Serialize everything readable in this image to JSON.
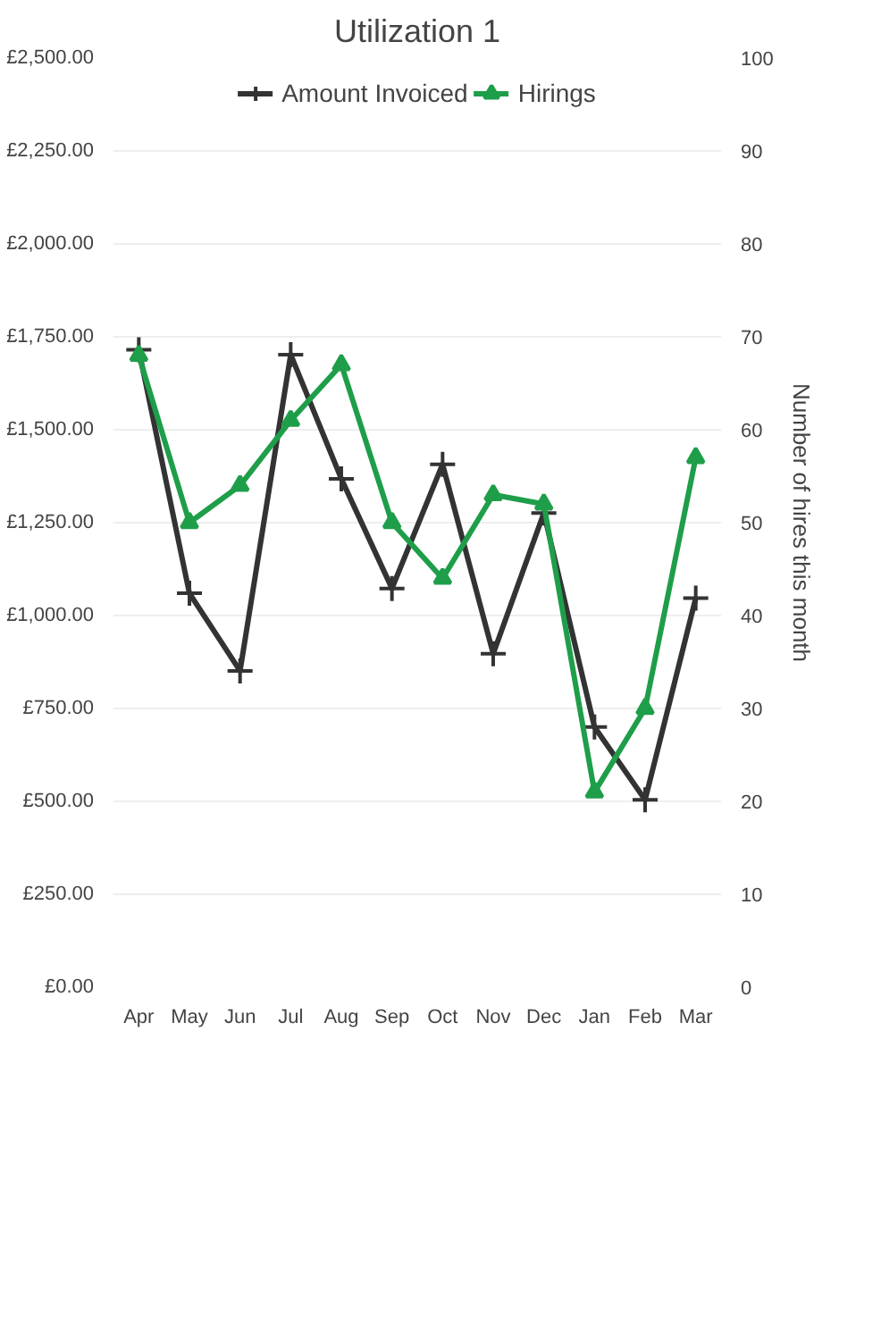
{
  "chart_data": {
    "type": "line",
    "title": "Utilization 1",
    "y2label": "Number of hires this month",
    "categories": [
      "Apr",
      "May",
      "Jun",
      "Jul",
      "Aug",
      "Sep",
      "Oct",
      "Nov",
      "Dec",
      "Jan",
      "Feb",
      "Mar"
    ],
    "series": [
      {
        "name": "Amount Invoiced",
        "color": "#333333",
        "marker": "cross",
        "values": [
          1715,
          1060,
          851,
          1702,
          1368,
          1073,
          1407,
          897,
          1276,
          700,
          504,
          1047
        ]
      },
      {
        "name": "Hirings",
        "color": "#1f9e4a",
        "marker": "triangle",
        "axis": "y2",
        "values": [
          68,
          50,
          54,
          61,
          67,
          50,
          44,
          53,
          52,
          21,
          30,
          57
        ]
      }
    ],
    "ylim": [
      0,
      2500
    ],
    "yticks": [
      {
        "value": 0,
        "label": "£0.00"
      },
      {
        "value": 250,
        "label": "£250.00"
      },
      {
        "value": 500,
        "label": "£500.00"
      },
      {
        "value": 750,
        "label": "£750.00"
      },
      {
        "value": 1000,
        "label": "£1,000.00"
      },
      {
        "value": 1250,
        "label": "£1,250.00"
      },
      {
        "value": 1500,
        "label": "£1,500.00"
      },
      {
        "value": 1750,
        "label": "£1,750.00"
      },
      {
        "value": 2000,
        "label": "£2,000.00"
      },
      {
        "value": 2250,
        "label": "£2,250.00"
      },
      {
        "value": 2500,
        "label": "£2,500.00"
      }
    ],
    "y2lim": [
      0,
      100
    ],
    "y2ticks": [
      0,
      10,
      20,
      30,
      40,
      50,
      60,
      70,
      80,
      90,
      100
    ],
    "grid": "y",
    "legend": "top"
  }
}
